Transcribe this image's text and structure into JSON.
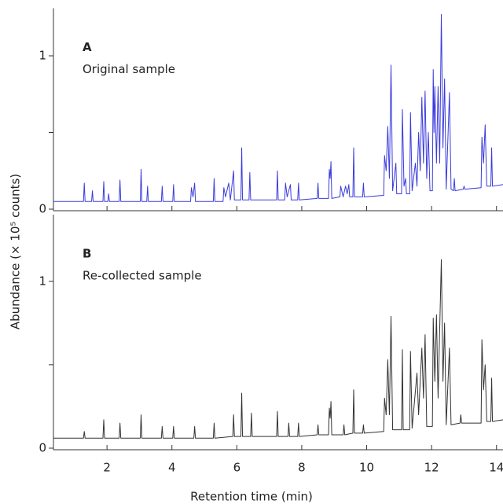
{
  "axis_labels": {
    "xlabel": "Retention time (min)",
    "ylabel": "Abundance (× 10⁵ counts)"
  },
  "chart_data": [
    {
      "type": "line",
      "panel_label": "A",
      "title": "Original sample",
      "xlim": [
        0.35,
        14.2
      ],
      "ylim": [
        0,
        1.3
      ],
      "yticks": [
        0,
        1
      ],
      "yminor": [
        0.5
      ],
      "series": [
        {
          "name": "Original sample",
          "color": "#3b3bdc",
          "x": [
            0.35,
            1.275,
            1.3,
            1.325,
            1.525,
            1.55,
            1.575,
            1.875,
            1.9,
            1.925,
            2.025,
            2.05,
            2.075,
            2.375,
            2.4,
            2.425,
            3.025,
            3.05,
            3.075,
            3.225,
            3.25,
            3.275,
            3.675,
            3.7,
            3.725,
            4.025,
            4.05,
            4.075,
            4.575,
            4.6,
            4.65,
            4.7,
            4.725,
            5.275,
            5.3,
            5.325,
            5.575,
            5.6,
            5.65,
            5.75,
            5.8,
            5.9,
            5.925,
            6.125,
            6.15,
            6.175,
            6.375,
            6.4,
            6.425,
            7.225,
            7.25,
            7.275,
            7.475,
            7.5,
            7.55,
            7.65,
            7.675,
            7.875,
            7.9,
            7.925,
            8.475,
            8.5,
            8.525,
            8.825,
            8.85,
            8.875,
            8.9,
            8.925,
            9.175,
            9.2,
            9.275,
            9.35,
            9.4,
            9.45,
            9.475,
            9.575,
            9.6,
            9.625,
            9.875,
            9.9,
            9.925,
            10.525,
            10.55,
            10.6,
            10.65,
            10.7,
            10.75,
            10.8,
            10.9,
            10.925,
            11.075,
            11.1,
            11.15,
            11.2,
            11.225,
            11.325,
            11.35,
            11.4,
            11.5,
            11.55,
            11.6,
            11.65,
            11.7,
            11.75,
            11.8,
            11.85,
            11.9,
            11.95,
            12.025,
            12.05,
            12.075,
            12.1,
            12.15,
            12.2,
            12.25,
            12.3,
            12.35,
            12.4,
            12.45,
            12.55,
            12.6,
            12.675,
            12.7,
            12.725,
            12.975,
            13.0,
            13.025,
            13.525,
            13.55,
            13.6,
            13.65,
            13.7,
            13.825,
            13.85,
            13.875,
            14.2
          ],
          "values": [
            0.05,
            0.05,
            0.17,
            0.05,
            0.05,
            0.12,
            0.05,
            0.05,
            0.18,
            0.05,
            0.05,
            0.1,
            0.05,
            0.05,
            0.19,
            0.05,
            0.05,
            0.26,
            0.05,
            0.05,
            0.15,
            0.05,
            0.05,
            0.15,
            0.05,
            0.05,
            0.16,
            0.05,
            0.05,
            0.14,
            0.08,
            0.17,
            0.05,
            0.05,
            0.2,
            0.05,
            0.05,
            0.14,
            0.08,
            0.17,
            0.06,
            0.25,
            0.06,
            0.06,
            0.4,
            0.06,
            0.06,
            0.24,
            0.06,
            0.06,
            0.25,
            0.06,
            0.06,
            0.17,
            0.08,
            0.16,
            0.06,
            0.06,
            0.17,
            0.06,
            0.07,
            0.17,
            0.07,
            0.07,
            0.26,
            0.2,
            0.31,
            0.07,
            0.08,
            0.15,
            0.08,
            0.15,
            0.1,
            0.16,
            0.08,
            0.08,
            0.4,
            0.08,
            0.08,
            0.17,
            0.08,
            0.09,
            0.35,
            0.25,
            0.54,
            0.2,
            0.94,
            0.12,
            0.3,
            0.1,
            0.1,
            0.65,
            0.15,
            0.2,
            0.1,
            0.1,
            0.63,
            0.12,
            0.3,
            0.15,
            0.5,
            0.25,
            0.73,
            0.3,
            0.77,
            0.2,
            0.5,
            0.12,
            0.12,
            0.91,
            0.5,
            0.8,
            0.3,
            0.8,
            0.3,
            1.27,
            0.4,
            0.85,
            0.13,
            0.76,
            0.13,
            0.12,
            0.2,
            0.12,
            0.13,
            0.15,
            0.13,
            0.14,
            0.47,
            0.3,
            0.55,
            0.15,
            0.15,
            0.4,
            0.15,
            0.16
          ]
        }
      ]
    },
    {
      "type": "line",
      "panel_label": "B",
      "title": "Re-collected sample",
      "xlim": [
        0.35,
        14.2
      ],
      "ylim": [
        0,
        1.39
      ],
      "xticks": [
        2,
        4,
        6,
        8,
        10,
        12,
        14
      ],
      "yticks": [
        0,
        1
      ],
      "yminor": [
        0.5
      ],
      "series": [
        {
          "name": "Re-collected sample",
          "color": "#333333",
          "x": [
            0.35,
            1.275,
            1.3,
            1.325,
            1.875,
            1.9,
            1.925,
            2.375,
            2.4,
            2.425,
            3.025,
            3.05,
            3.075,
            3.675,
            3.7,
            3.725,
            4.025,
            4.05,
            4.075,
            4.675,
            4.7,
            4.725,
            5.275,
            5.3,
            5.325,
            5.875,
            5.9,
            5.925,
            6.125,
            6.15,
            6.175,
            6.425,
            6.45,
            6.475,
            7.225,
            7.25,
            7.275,
            7.575,
            7.6,
            7.625,
            7.875,
            7.9,
            7.925,
            8.475,
            8.5,
            8.525,
            8.825,
            8.85,
            8.875,
            8.9,
            8.925,
            9.275,
            9.3,
            9.325,
            9.575,
            9.6,
            9.625,
            9.875,
            9.9,
            9.925,
            10.525,
            10.55,
            10.6,
            10.65,
            10.7,
            10.75,
            10.8,
            11.075,
            11.1,
            11.125,
            11.325,
            11.35,
            11.4,
            11.55,
            11.6,
            11.7,
            11.75,
            11.8,
            11.85,
            12.025,
            12.05,
            12.1,
            12.15,
            12.2,
            12.3,
            12.35,
            12.4,
            12.45,
            12.55,
            12.6,
            12.875,
            12.9,
            12.925,
            13.525,
            13.55,
            13.6,
            13.65,
            13.7,
            13.825,
            13.85,
            13.875,
            14.2
          ],
          "values": [
            0.06,
            0.06,
            0.1,
            0.06,
            0.06,
            0.17,
            0.06,
            0.06,
            0.15,
            0.06,
            0.06,
            0.2,
            0.06,
            0.06,
            0.13,
            0.06,
            0.06,
            0.13,
            0.06,
            0.06,
            0.13,
            0.06,
            0.06,
            0.15,
            0.06,
            0.07,
            0.2,
            0.07,
            0.07,
            0.33,
            0.07,
            0.07,
            0.21,
            0.07,
            0.07,
            0.22,
            0.07,
            0.07,
            0.15,
            0.07,
            0.07,
            0.15,
            0.07,
            0.08,
            0.14,
            0.08,
            0.08,
            0.24,
            0.18,
            0.28,
            0.08,
            0.08,
            0.14,
            0.08,
            0.09,
            0.35,
            0.09,
            0.09,
            0.14,
            0.09,
            0.1,
            0.3,
            0.2,
            0.53,
            0.2,
            0.79,
            0.11,
            0.11,
            0.59,
            0.11,
            0.11,
            0.58,
            0.12,
            0.45,
            0.2,
            0.6,
            0.3,
            0.68,
            0.13,
            0.13,
            0.78,
            0.4,
            0.8,
            0.3,
            1.13,
            0.4,
            0.75,
            0.14,
            0.6,
            0.14,
            0.15,
            0.2,
            0.15,
            0.15,
            0.65,
            0.35,
            0.5,
            0.16,
            0.16,
            0.42,
            0.16,
            0.17
          ]
        }
      ]
    }
  ]
}
